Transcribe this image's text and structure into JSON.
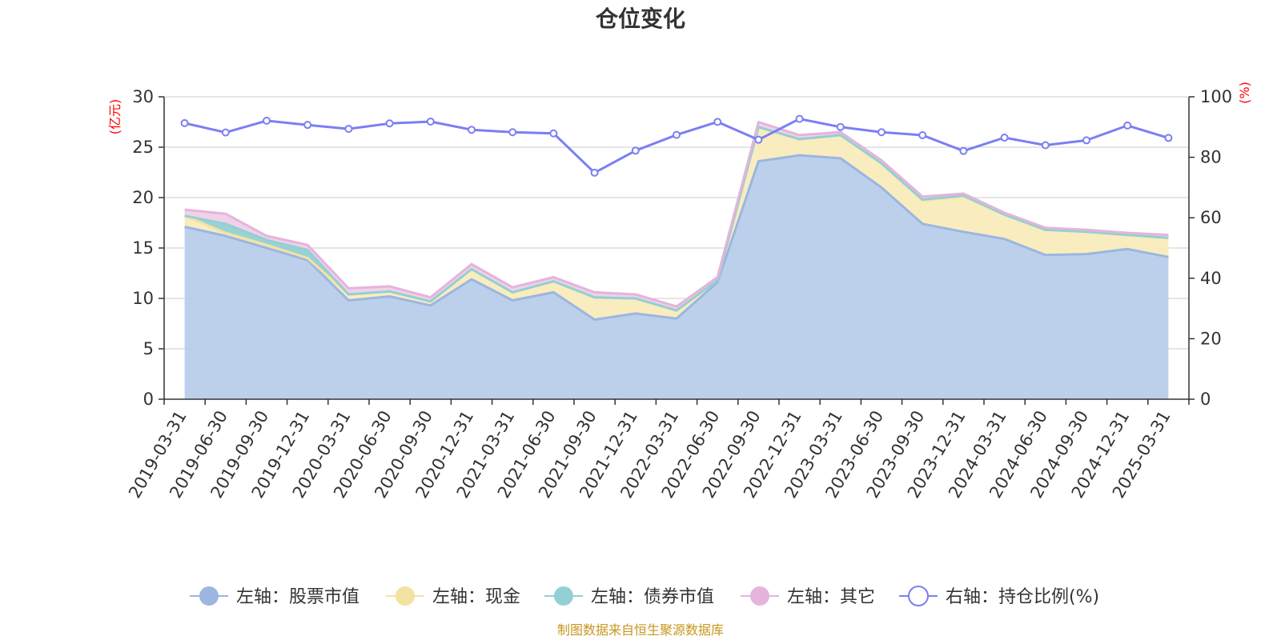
{
  "chart_data": {
    "type": "area",
    "title": "仓位变化",
    "left_unit": "(亿元)",
    "right_unit": "(%)",
    "categories": [
      "2019-03-31",
      "2019-06-30",
      "2019-09-30",
      "2019-12-31",
      "2020-03-31",
      "2020-06-30",
      "2020-09-30",
      "2020-12-31",
      "2021-03-31",
      "2021-06-30",
      "2021-09-30",
      "2021-12-31",
      "2022-03-31",
      "2022-06-30",
      "2022-09-30",
      "2022-12-31",
      "2023-03-31",
      "2023-06-30",
      "2023-09-30",
      "2023-12-31",
      "2024-03-31",
      "2024-06-30",
      "2024-09-30",
      "2024-12-31",
      "2025-03-31"
    ],
    "left_axis": {
      "min": 0,
      "max": 30,
      "ticks": [
        "0",
        "5",
        "10",
        "15",
        "20",
        "25",
        "30"
      ]
    },
    "right_axis": {
      "min": 0,
      "max": 100,
      "ticks": [
        "0",
        "20",
        "40",
        "60",
        "80",
        "100"
      ]
    },
    "grid": true,
    "legend_position": "bottom",
    "series": [
      {
        "name": "左轴：股票市值",
        "axis": "left",
        "stack": true,
        "color": "#9bb6e0",
        "fill": "#b8cdea",
        "values": [
          17.1,
          16.2,
          15.0,
          13.8,
          9.8,
          10.2,
          9.3,
          11.9,
          9.8,
          10.6,
          7.9,
          8.5,
          8.0,
          11.6,
          23.6,
          24.2,
          23.9,
          21.0,
          17.4,
          16.6,
          15.9,
          14.3,
          14.4,
          14.9,
          14.1
        ]
      },
      {
        "name": "左轴：现金",
        "axis": "left",
        "stack": true,
        "color": "#f4e2a0",
        "fill": "#f9ebba",
        "values": [
          1.1,
          0.3,
          0.3,
          0.2,
          0.6,
          0.5,
          0.4,
          1.0,
          0.8,
          1.1,
          2.2,
          1.5,
          0.8,
          0.2,
          3.4,
          1.6,
          2.3,
          2.4,
          2.3,
          3.5,
          2.4,
          2.5,
          2.2,
          1.4,
          1.9
        ]
      },
      {
        "name": "左轴：债券市值",
        "axis": "left",
        "stack": true,
        "color": "#93d0d3",
        "fill": "#93d0d3",
        "values": [
          0,
          0.9,
          0.5,
          0.8,
          0,
          0,
          0,
          0,
          0,
          0,
          0,
          0,
          0,
          0,
          0,
          0,
          0,
          0,
          0.1,
          0.1,
          0,
          0,
          0,
          0,
          0
        ]
      },
      {
        "name": "左轴：其它",
        "axis": "left",
        "stack": true,
        "color": "#e4b4dc",
        "fill": "#f0cfe9",
        "values": [
          0.6,
          1.0,
          0.4,
          0.5,
          0.6,
          0.5,
          0.4,
          0.5,
          0.5,
          0.4,
          0.5,
          0.4,
          0.4,
          0.3,
          0.5,
          0.4,
          0.3,
          0.3,
          0.3,
          0.2,
          0.2,
          0.2,
          0.2,
          0.2,
          0.3
        ]
      },
      {
        "name": "右轴：持仓比例(%)",
        "axis": "right",
        "stack": false,
        "color": "#7b7ff2",
        "values": [
          91.3,
          88.2,
          92.1,
          90.7,
          89.4,
          91.2,
          91.8,
          89.1,
          88.3,
          87.9,
          74.9,
          82.2,
          87.4,
          91.7,
          85.8,
          92.7,
          90.0,
          88.3,
          87.3,
          82.1,
          86.5,
          84.0,
          85.6,
          90.5,
          86.4
        ]
      }
    ],
    "source": "制图数据来自恒生聚源数据库"
  }
}
